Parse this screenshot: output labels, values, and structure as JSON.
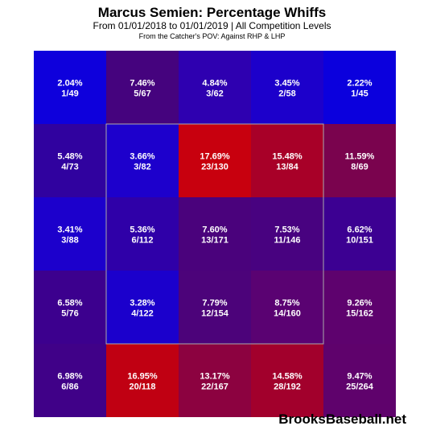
{
  "chart_data": {
    "type": "heatmap",
    "title": "Marcus Semien: Percentage Whiffs",
    "subtitle": "From 01/01/2018 to 01/01/2019 | All Competition Levels",
    "note": "From the Catcher's POV:  Against RHP & LHP",
    "rows": 5,
    "cols": 5,
    "strike_zone": {
      "rows": [
        1,
        3
      ],
      "cols": [
        1,
        3
      ]
    },
    "cells": [
      [
        {
          "pct": "2.04%",
          "count": "1/49",
          "value": 2.04,
          "color": "#0e00dc"
        },
        {
          "pct": "7.46%",
          "count": "5/67",
          "value": 7.46,
          "color": "#45037e"
        },
        {
          "pct": "4.84%",
          "count": "3/62",
          "value": 4.84,
          "color": "#2e00b0"
        },
        {
          "pct": "3.45%",
          "count": "2/58",
          "value": 3.45,
          "color": "#1c00cb"
        },
        {
          "pct": "2.22%",
          "count": "1/45",
          "value": 2.22,
          "color": "#0b00dd"
        }
      ],
      [
        {
          "pct": "5.48%",
          "count": "4/73",
          "value": 5.48,
          "color": "#30029f"
        },
        {
          "pct": "3.66%",
          "count": "3/82",
          "value": 3.66,
          "color": "#1d00cc"
        },
        {
          "pct": "17.69%",
          "count": "23/130",
          "value": 17.69,
          "color": "#c8000e"
        },
        {
          "pct": "15.48%",
          "count": "13/84",
          "value": 15.48,
          "color": "#a80028"
        },
        {
          "pct": "11.59%",
          "count": "8/69",
          "value": 11.59,
          "color": "#7a034e"
        }
      ],
      [
        {
          "pct": "3.41%",
          "count": "3/88",
          "value": 3.41,
          "color": "#1c00cc"
        },
        {
          "pct": "5.36%",
          "count": "6/112",
          "value": 5.36,
          "color": "#2f00a8"
        },
        {
          "pct": "7.60%",
          "count": "13/171",
          "value": 7.6,
          "color": "#4a027c"
        },
        {
          "pct": "7.53%",
          "count": "11/146",
          "value": 7.53,
          "color": "#480280"
        },
        {
          "pct": "6.62%",
          "count": "10/151",
          "value": 6.62,
          "color": "#3c0092"
        }
      ],
      [
        {
          "pct": "6.58%",
          "count": "5/76",
          "value": 6.58,
          "color": "#3c008e"
        },
        {
          "pct": "3.28%",
          "count": "4/122",
          "value": 3.28,
          "color": "#1b00cc"
        },
        {
          "pct": "7.79%",
          "count": "12/154",
          "value": 7.79,
          "color": "#4c037a"
        },
        {
          "pct": "8.75%",
          "count": "14/160",
          "value": 8.75,
          "color": "#5a0272"
        },
        {
          "pct": "9.26%",
          "count": "15/162",
          "value": 9.26,
          "color": "#5e026e"
        }
      ],
      [
        {
          "pct": "6.98%",
          "count": "6/86",
          "value": 6.98,
          "color": "#400188"
        },
        {
          "pct": "16.95%",
          "count": "20/118",
          "value": 16.95,
          "color": "#c00012"
        },
        {
          "pct": "13.17%",
          "count": "22/167",
          "value": 13.17,
          "color": "#8c0240"
        },
        {
          "pct": "14.58%",
          "count": "28/192",
          "value": 14.58,
          "color": "#a2002c"
        },
        {
          "pct": "9.47%",
          "count": "25/264",
          "value": 9.47,
          "color": "#5f026c"
        }
      ]
    ]
  },
  "footer": {
    "brand": "BrooksBaseball.net"
  }
}
